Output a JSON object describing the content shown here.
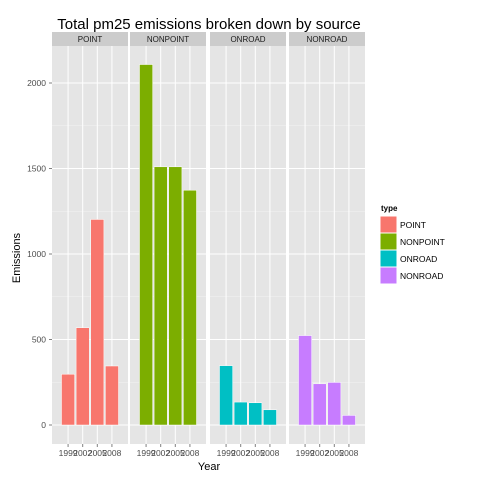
{
  "chart_data": {
    "type": "bar",
    "title": "Total pm25 emissions broken down by source",
    "xlabel": "Year",
    "ylabel": "Emissions",
    "categories": [
      "1999",
      "2002",
      "2005",
      "2008"
    ],
    "ylim": [
      0,
      2200
    ],
    "yticks": [
      0,
      500,
      1000,
      1500,
      2000
    ],
    "grid": true,
    "legend": {
      "title": "type",
      "position": "right",
      "entries": [
        "POINT",
        "NONPOINT",
        "ONROAD",
        "NONROAD"
      ]
    },
    "facets": [
      {
        "name": "POINT",
        "color": "#F8766D",
        "values": [
          297,
          569,
          1202,
          345
        ]
      },
      {
        "name": "NONPOINT",
        "color": "#7CAE00",
        "values": [
          2108,
          1510,
          1510,
          1373
        ]
      },
      {
        "name": "ONROAD",
        "color": "#00BFC4",
        "values": [
          347,
          134,
          130,
          89
        ]
      },
      {
        "name": "NONROAD",
        "color": "#C77CFF",
        "values": [
          523,
          241,
          249,
          56
        ]
      }
    ]
  }
}
